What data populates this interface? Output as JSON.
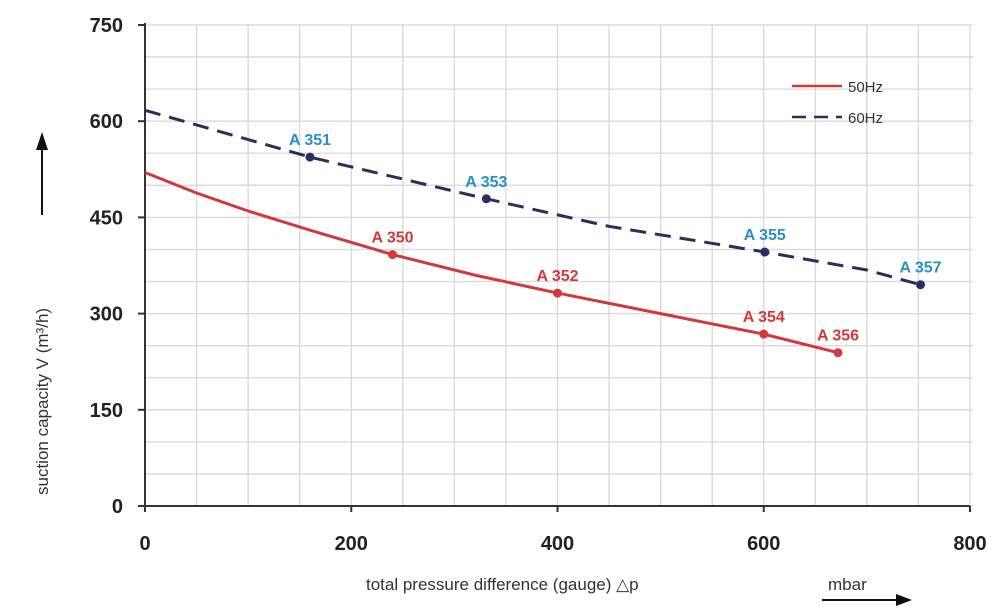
{
  "chart_data": {
    "type": "line",
    "xlabel": "total pressure difference (gauge) △p",
    "xunit": "mbar",
    "ylabel": "suction capacity V (m³/h)",
    "xlim": [
      0,
      800
    ],
    "ylim": [
      0,
      750
    ],
    "xticks": [
      0,
      200,
      400,
      600,
      800
    ],
    "yticks": [
      0,
      150,
      300,
      450,
      600,
      750
    ],
    "grid": true,
    "grid_step": {
      "x": 50,
      "y": 50
    },
    "legend_position": "top-right",
    "series": [
      {
        "name": "50Hz",
        "color": "#d03a3a",
        "style": "solid",
        "points": [
          [
            0,
            520
          ],
          [
            50,
            488
          ],
          [
            100,
            460
          ],
          [
            160,
            430
          ],
          [
            240,
            392
          ],
          [
            320,
            360
          ],
          [
            400,
            332
          ],
          [
            500,
            300
          ],
          [
            600,
            268
          ],
          [
            672,
            239
          ]
        ],
        "markers": [
          {
            "label": "A 350",
            "x": 240,
            "y": 392
          },
          {
            "label": "A 352",
            "x": 400,
            "y": 332
          },
          {
            "label": "A 354",
            "x": 600,
            "y": 268
          },
          {
            "label": "A 356",
            "x": 672,
            "y": 239
          }
        ]
      },
      {
        "name": "60Hz",
        "color": "#2a2f5e",
        "style": "dashed",
        "points": [
          [
            0,
            617
          ],
          [
            160,
            544
          ],
          [
            331,
            479
          ],
          [
            450,
            436
          ],
          [
            601,
            396
          ],
          [
            700,
            368
          ],
          [
            752,
            345
          ]
        ],
        "markers": [
          {
            "label": "A 351",
            "x": 160,
            "y": 544
          },
          {
            "label": "A 353",
            "x": 331,
            "y": 479
          },
          {
            "label": "A 355",
            "x": 601,
            "y": 396
          },
          {
            "label": "A 357",
            "x": 752,
            "y": 345
          }
        ]
      }
    ],
    "label_colors": {
      "50Hz": "#d03a3a",
      "60Hz": "#2a8fc4"
    }
  }
}
